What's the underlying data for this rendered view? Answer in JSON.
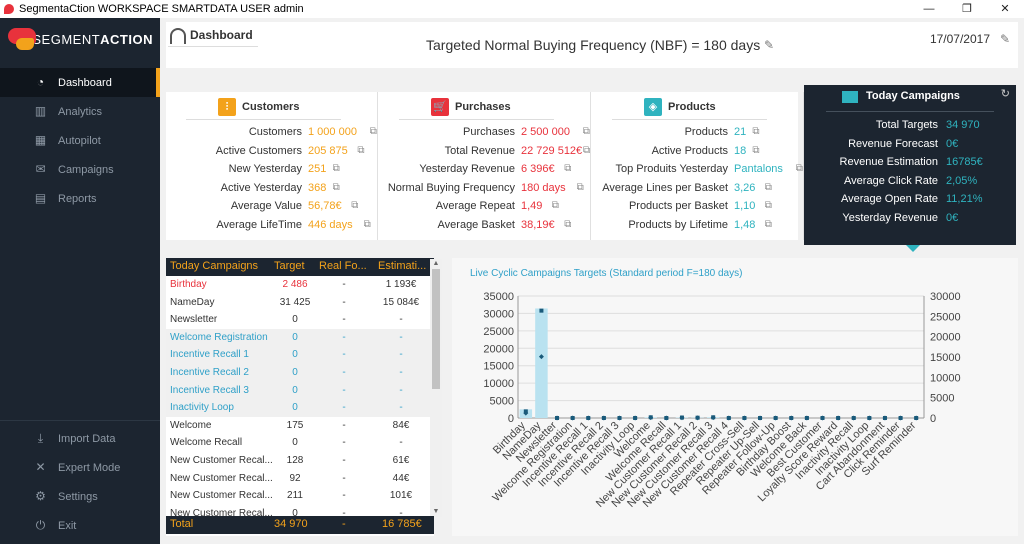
{
  "window": {
    "title": "SegmentaCtion WORKSPACE SMARTDATA USER admin",
    "controls": {
      "minimize": "—",
      "restore": "❐",
      "close": "✕"
    }
  },
  "logo": {
    "brand": "SEGMENT",
    "brand_bold": "ACTION"
  },
  "sidebar": {
    "items": [
      {
        "label": "Dashboard",
        "icon": "gauge-icon",
        "glyph": "◔",
        "active": true
      },
      {
        "label": "Analytics",
        "icon": "bar-chart-icon",
        "glyph": "▥",
        "active": false
      },
      {
        "label": "Autopilot",
        "icon": "calendar-icon",
        "glyph": "▦",
        "active": false
      },
      {
        "label": "Campaigns",
        "icon": "envelope-icon",
        "glyph": "✉",
        "active": false
      },
      {
        "label": "Reports",
        "icon": "document-icon",
        "glyph": "▤",
        "active": false
      }
    ],
    "bottom": [
      {
        "label": "Import Data",
        "icon": "download-icon",
        "glyph": "⤓"
      },
      {
        "label": "Expert Mode",
        "icon": "tools-icon",
        "glyph": "✕"
      },
      {
        "label": "Settings",
        "icon": "gear-icon",
        "glyph": "⚙"
      },
      {
        "label": "Exit",
        "icon": "power-icon",
        "glyph": "⏻"
      }
    ]
  },
  "header": {
    "section": "Dashboard",
    "title": "Targeted Normal Buying Frequency (NBF) = 180 days",
    "date": "17/07/2017",
    "edit_glyph": "✎"
  },
  "cards": [
    {
      "title": "Customers",
      "icon_glyph": "⫶",
      "icon_color": "#f3a21b",
      "rows": [
        {
          "label": "Customers",
          "value": "1 000 000"
        },
        {
          "label": "Active Customers",
          "value": "205 875"
        },
        {
          "label": "New Yesterday",
          "value": "251"
        },
        {
          "label": "Active  Yesterday",
          "value": "368"
        },
        {
          "label": "Average Value",
          "value": "56,78€"
        },
        {
          "label": "Average LifeTime",
          "value": "446 days"
        }
      ]
    },
    {
      "title": "Purchases",
      "icon_glyph": "🛒",
      "icon_color": "#e8323c",
      "rows": [
        {
          "label": "Purchases",
          "value": "2 500 000"
        },
        {
          "label": "Total Revenue",
          "value": "22 729 512€"
        },
        {
          "label": "Yesterday Revenue",
          "value": "6 396€"
        },
        {
          "label": "Normal Buying Frequency",
          "value": "180 days"
        },
        {
          "label": "Average Repeat",
          "value": "1,49"
        },
        {
          "label": "Average Basket",
          "value": "38,19€"
        }
      ]
    },
    {
      "title": "Products",
      "icon_glyph": "◈",
      "icon_color": "#2fb3bf",
      "rows": [
        {
          "label": "Products",
          "value": "21"
        },
        {
          "label": "Active Products",
          "value": "18"
        },
        {
          "label": "Top Produits Yesterday",
          "value": "Pantalons"
        },
        {
          "label": "Average Lines per Basket",
          "value": "3,26"
        },
        {
          "label": "Products per Basket",
          "value": "1,10"
        },
        {
          "label": "Products by Lifetime",
          "value": "1,48"
        }
      ]
    }
  ],
  "external_link_glyph": "⧉",
  "popup": {
    "title": "Today Campaigns",
    "refresh_glyph": "↻",
    "rows": [
      {
        "label": "Total Targets",
        "value": "34 970"
      },
      {
        "label": "Revenue Forecast",
        "value": "0€"
      },
      {
        "label": "Revenue Estimation",
        "value": "16785€"
      },
      {
        "label": "Average Click Rate",
        "value": "2,05%"
      },
      {
        "label": "Average Open Rate",
        "value": "11,21%"
      },
      {
        "label": "Yesterday Revenue",
        "value": "0€"
      }
    ]
  },
  "table": {
    "headers": [
      "Today Campaigns",
      "Target",
      "Real Fo...",
      "Estimati..."
    ],
    "rows": [
      {
        "name": "Birthday",
        "target": "2 486",
        "real": "-",
        "est": "1 193€",
        "style": "red"
      },
      {
        "name": "NameDay",
        "target": "31 425",
        "real": "-",
        "est": "15 084€",
        "style": "normal"
      },
      {
        "name": "Newsletter",
        "target": "0",
        "real": "-",
        "est": "-",
        "style": "normal"
      },
      {
        "name": "Welcome Registration",
        "target": "0",
        "real": "-",
        "est": "-",
        "style": "teal"
      },
      {
        "name": "Incentive Recall 1",
        "target": "0",
        "real": "-",
        "est": "-",
        "style": "teal"
      },
      {
        "name": "Incentive Recall 2",
        "target": "0",
        "real": "-",
        "est": "-",
        "style": "teal"
      },
      {
        "name": "Incentive Recall 3",
        "target": "0",
        "real": "-",
        "est": "-",
        "style": "teal"
      },
      {
        "name": "Inactivity Loop",
        "target": "0",
        "real": "-",
        "est": "-",
        "style": "teal"
      },
      {
        "name": "Welcome",
        "target": "175",
        "real": "-",
        "est": "84€",
        "style": "normal"
      },
      {
        "name": "Welcome Recall",
        "target": "0",
        "real": "-",
        "est": "-",
        "style": "normal"
      },
      {
        "name": "New Customer Recal...",
        "target": "128",
        "real": "-",
        "est": "61€",
        "style": "normal"
      },
      {
        "name": "New Customer Recal...",
        "target": "92",
        "real": "-",
        "est": "44€",
        "style": "normal"
      },
      {
        "name": "New Customer Recal...",
        "target": "211",
        "real": "-",
        "est": "101€",
        "style": "normal"
      },
      {
        "name": "New Customer Recal...",
        "target": "0",
        "real": "-",
        "est": "-",
        "style": "normal"
      }
    ],
    "footer": {
      "label": "Total",
      "target": "34 970",
      "real": "-",
      "est": "16 785€"
    }
  },
  "chart_data": {
    "type": "bar",
    "title": "Live Cyclic Campaigns Targets (Standard period F=180 days)",
    "categories": [
      "Birthday",
      "NameDay",
      "Newsletter",
      "Welcome Registration",
      "Incentive Recall 1",
      "Incentive Recall 2",
      "Incentive Recall 3",
      "Inactivity Loop",
      "Welcome",
      "Welcome Recall",
      "New Customer Recall 1",
      "New Customer Recall 2",
      "New Customer Recall 3",
      "New Customer Recall 4",
      "Repeater Cross-Sell",
      "Repeater Up-Sell",
      "Repeater Follow-Up",
      "Birthday Boost",
      "Welcome Back",
      "Best Customer",
      "Loyalty Score Reward",
      "Inactivity Recall",
      "Inactivity Loop",
      "Cart Abandonment",
      "Click Reminder",
      "Surf Reminder"
    ],
    "series": [
      {
        "axis": "left",
        "color": "#b9e2f0",
        "values": [
          2486,
          31425,
          0,
          0,
          0,
          0,
          0,
          0,
          175,
          0,
          128,
          92,
          211,
          0,
          0,
          0,
          0,
          0,
          0,
          0,
          0,
          0,
          0,
          0,
          0,
          0
        ]
      },
      {
        "axis": "left",
        "color": "#1a5a7a",
        "values": [
          1900,
          30800,
          0,
          0,
          0,
          0,
          0,
          0,
          200,
          0,
          130,
          90,
          200,
          0,
          0,
          0,
          0,
          0,
          0,
          0,
          0,
          0,
          0,
          0,
          0,
          0
        ]
      },
      {
        "axis": "right",
        "color": "#1a5a7a",
        "values": [
          1193,
          15084,
          0,
          0,
          0,
          0,
          0,
          0,
          84,
          0,
          61,
          44,
          101,
          0,
          0,
          0,
          0,
          0,
          0,
          0,
          0,
          0,
          0,
          0,
          0,
          0
        ]
      }
    ],
    "y_left": {
      "min": 0,
      "max": 35000,
      "ticks": [
        "0",
        "5000",
        "10000",
        "15000",
        "20000",
        "25000",
        "30000",
        "35000"
      ]
    },
    "y_right": {
      "min": 0,
      "max": 30000,
      "ticks": [
        "0",
        "5000",
        "10000",
        "15000",
        "20000",
        "25000",
        "30000"
      ]
    },
    "grid": true
  }
}
